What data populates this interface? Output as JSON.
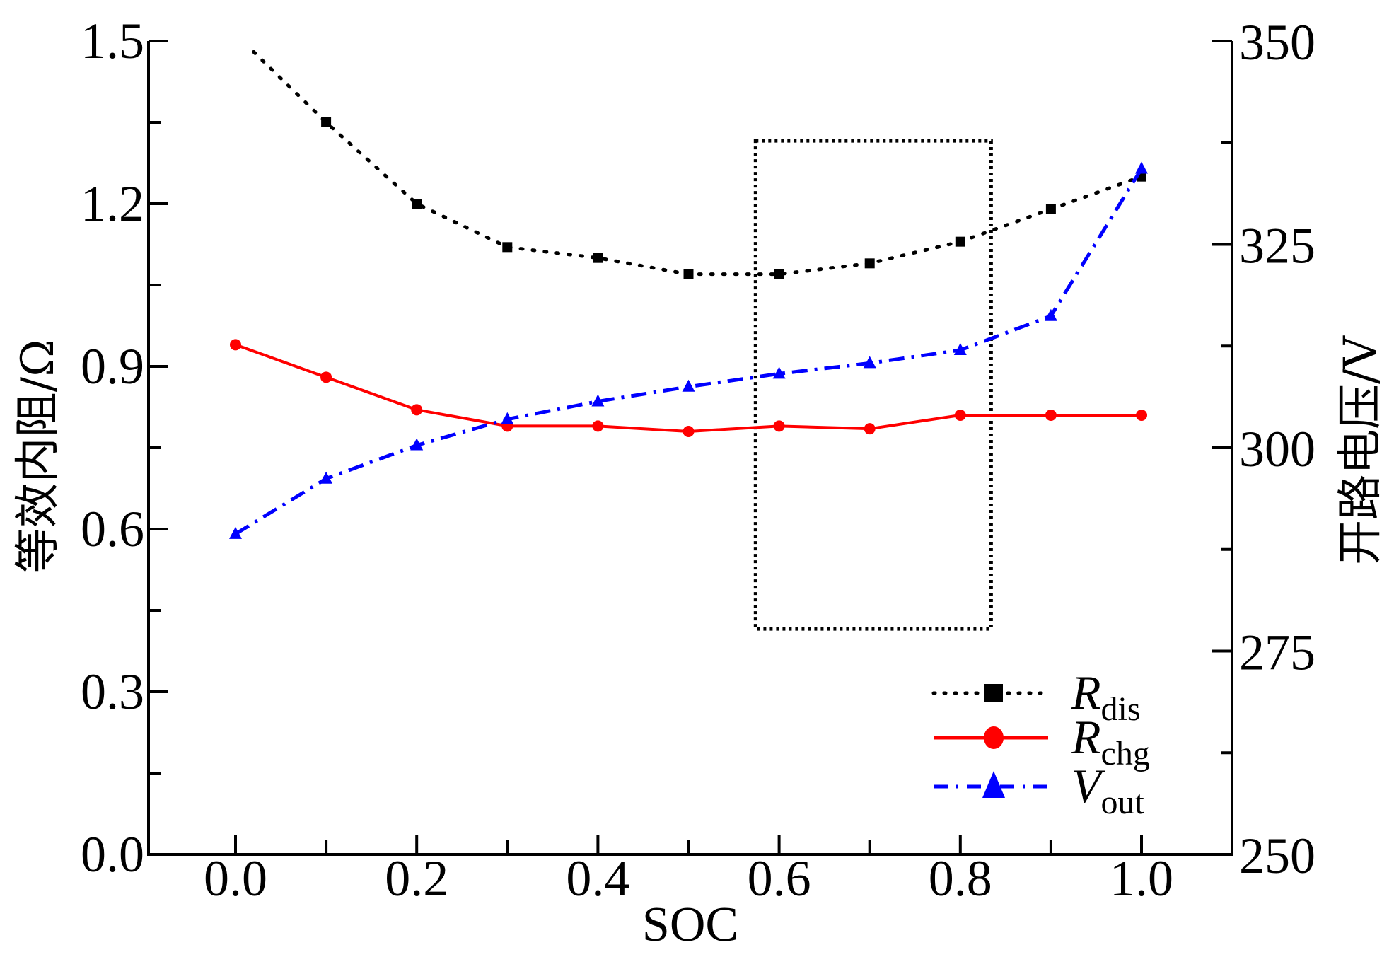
{
  "chart_data": {
    "type": "line",
    "title": "",
    "xlabel": "SOC",
    "ylabel_left": "等效内阻/Ω",
    "ylabel_right": "开路电压/V",
    "xlim": [
      -0.096,
      1.1
    ],
    "ylim_left": [
      0,
      1.5
    ],
    "ylim_right": [
      250,
      350
    ],
    "x_ticks": [
      0.0,
      0.2,
      0.4,
      0.6,
      0.8,
      1.0
    ],
    "x_tick_labels": [
      "0.0",
      "0.2",
      "0.4",
      "0.6",
      "0.8",
      "1.0"
    ],
    "x_minor_ticks": [
      0.1,
      0.3,
      0.5,
      0.7,
      0.9
    ],
    "y_left_ticks": [
      0.0,
      0.3,
      0.6,
      0.9,
      1.2,
      1.5
    ],
    "y_left_tick_labels": [
      "0.0",
      "0.3",
      "0.6",
      "0.9",
      "1.2",
      "1.5"
    ],
    "y_left_minor_ticks": [
      0.15,
      0.45,
      0.75,
      1.05,
      1.35
    ],
    "y_right_ticks": [
      250,
      275,
      300,
      325,
      350
    ],
    "y_right_tick_labels": [
      "250",
      "275",
      "300",
      "325",
      "350"
    ],
    "y_right_minor_ticks": [
      262.5,
      287.5,
      312.5,
      337.5
    ],
    "grid": false,
    "legend_position": "bottom-right",
    "x": [
      0.0,
      0.1,
      0.2,
      0.3,
      0.4,
      0.5,
      0.6,
      0.7,
      0.8,
      0.9,
      1.0
    ],
    "series": [
      {
        "name": "R_dis",
        "label_main": "R",
        "label_sub": "dis",
        "axis": "left",
        "color": "#000000",
        "line_style": "dotted",
        "marker": "square",
        "line_start": [
          0.02,
          1.48
        ],
        "values": [
          null,
          1.35,
          1.2,
          1.12,
          1.1,
          1.07,
          1.07,
          1.09,
          1.13,
          1.19,
          1.25
        ]
      },
      {
        "name": "R_chg",
        "label_main": "R",
        "label_sub": "chg",
        "axis": "left",
        "color": "#ff0000",
        "line_style": "solid",
        "marker": "circle",
        "values": [
          0.94,
          0.88,
          0.82,
          0.79,
          0.79,
          0.78,
          0.79,
          0.785,
          0.81,
          0.81,
          0.81
        ]
      },
      {
        "name": "V_out",
        "label_main": "V",
        "label_sub": "out",
        "axis": "right",
        "color": "#0000ff",
        "line_style": "dashdot",
        "marker": "triangle",
        "values": [
          289.4,
          296.2,
          300.3,
          303.5,
          305.7,
          307.5,
          309.1,
          310.4,
          312.0,
          316.2,
          334.3
        ]
      }
    ],
    "annotations": [
      {
        "type": "dotted-rectangle",
        "x_range": [
          0.574,
          0.834
        ],
        "y_range_left": [
          0.416,
          1.316
        ],
        "color": "#000000"
      }
    ]
  }
}
